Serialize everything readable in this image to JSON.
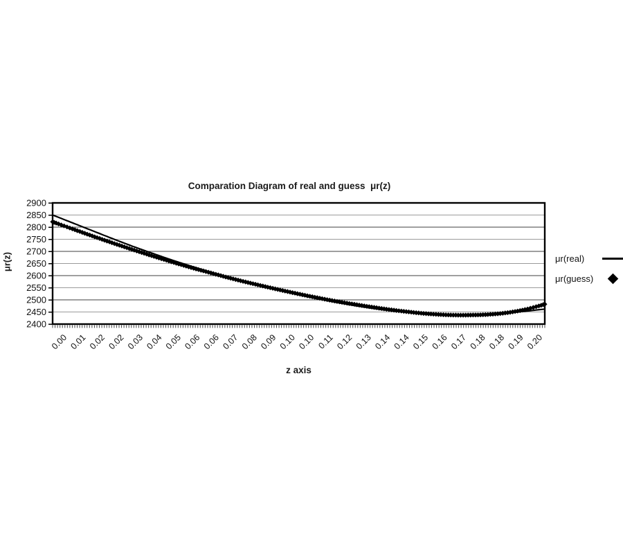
{
  "title": "Comparation Diagram of real and guess  μr(z)",
  "legend": {
    "items": [
      {
        "label": "μr(real)",
        "symbol": "line"
      },
      {
        "label": "μr(guess)",
        "symbol": "diamond"
      }
    ]
  },
  "colors": {
    "series": "#000000",
    "grid_major": "#3f3f3f",
    "grid_minor": "#9a9a9a",
    "border": "#000000",
    "text": "#111111"
  },
  "chart_data": {
    "type": "line",
    "title": "Comparation Diagram of real and guess μr(z)",
    "xlabel": "z axis",
    "ylabel": "μr(z)",
    "ylim": [
      2400,
      2900
    ],
    "ytick_step": 50,
    "yticks": [
      2400,
      2450,
      2500,
      2550,
      2600,
      2650,
      2700,
      2750,
      2800,
      2850,
      2900
    ],
    "grid": "horizontal",
    "legend_position": "right",
    "x_labels": [
      "0.00",
      "0.01",
      "0.02",
      "0.02",
      "0.03",
      "0.04",
      "0.05",
      "0.06",
      "0.06",
      "0.07",
      "0.08",
      "0.09",
      "0.10",
      "0.10",
      "0.11",
      "0.12",
      "0.13",
      "0.14",
      "0.14",
      "0.15",
      "0.16",
      "0.17",
      "0.18",
      "0.18",
      "0.19",
      "0.20"
    ],
    "x": [
      0.0,
      0.008,
      0.016,
      0.024,
      0.032,
      0.04,
      0.048,
      0.056,
      0.064,
      0.072,
      0.08,
      0.088,
      0.096,
      0.104,
      0.112,
      0.12,
      0.128,
      0.136,
      0.144,
      0.152,
      0.16,
      0.168,
      0.176,
      0.184,
      0.192,
      0.2
    ],
    "series": [
      {
        "name": "μr(real)",
        "style": "line",
        "values": [
          2850,
          2818,
          2786,
          2754,
          2723,
          2694,
          2666,
          2640,
          2615,
          2592,
          2570,
          2549,
          2530,
          2512,
          2496,
          2481,
          2468,
          2457,
          2449,
          2443,
          2440,
          2440,
          2442,
          2446,
          2453,
          2462
        ]
      },
      {
        "name": "μr(guess)",
        "style": "diamond-markers",
        "values": [
          2822,
          2793,
          2764,
          2736,
          2709,
          2683,
          2658,
          2634,
          2612,
          2590,
          2570,
          2551,
          2533,
          2516,
          2500,
          2486,
          2473,
          2461,
          2451,
          2443,
          2438,
          2437,
          2439,
          2446,
          2460,
          2482
        ]
      }
    ]
  }
}
